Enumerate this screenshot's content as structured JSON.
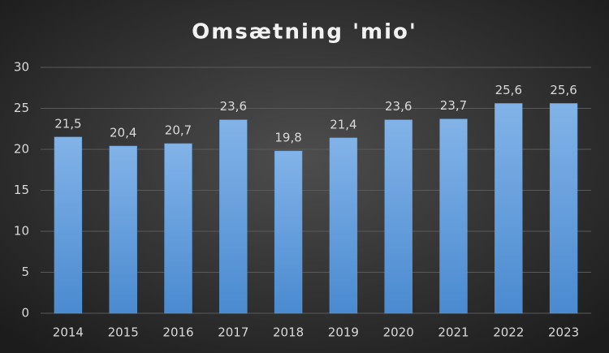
{
  "chart_data": {
    "type": "bar",
    "title": "Omsætning 'mio'",
    "categories": [
      "2014",
      "2015",
      "2016",
      "2017",
      "2018",
      "2019",
      "2020",
      "2021",
      "2022",
      "2023"
    ],
    "values": [
      21.5,
      20.4,
      20.7,
      23.6,
      19.8,
      21.4,
      23.6,
      23.7,
      25.6,
      25.6
    ],
    "value_labels": [
      "21,5",
      "20,4",
      "20,7",
      "23,6",
      "19,8",
      "21,4",
      "23,6",
      "23,7",
      "25,6",
      "25,6"
    ],
    "color": "#5b9bd5",
    "ylim": [
      0,
      30
    ],
    "yticks": [
      0,
      5,
      10,
      15,
      20,
      25,
      30
    ],
    "grid": true
  }
}
